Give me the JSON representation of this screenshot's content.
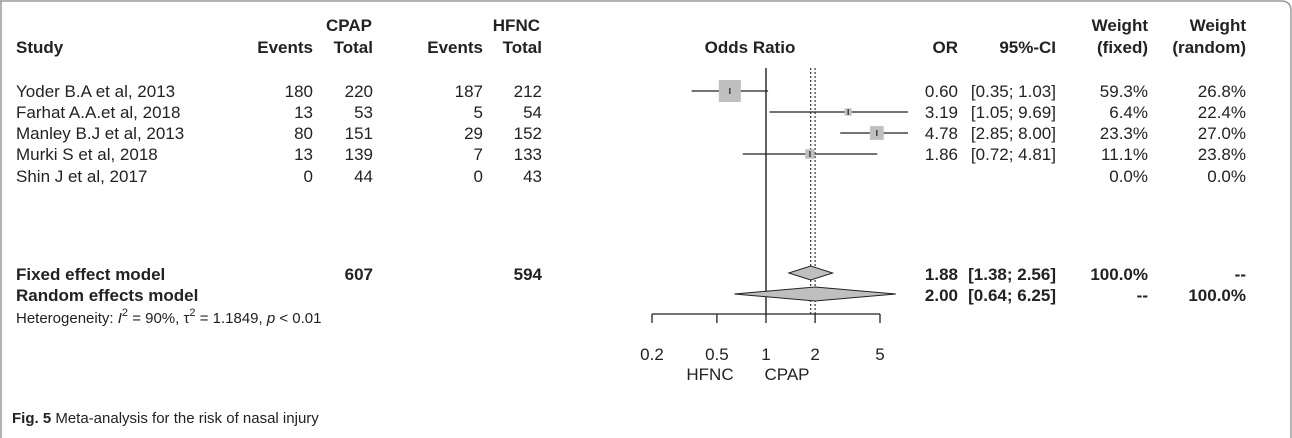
{
  "headers": {
    "study": "Study",
    "cpap_group": "CPAP",
    "hfnc_group": "HFNC",
    "events": "Events",
    "total": "Total",
    "odds_ratio": "Odds Ratio",
    "or": "OR",
    "ci": "95%-CI",
    "weight": "Weight",
    "fixed": "(fixed)",
    "random": "(random)"
  },
  "chart_data": {
    "type": "forest",
    "title": "Odds Ratio",
    "scale": "log",
    "xlim": [
      0.2,
      5
    ],
    "ticks": [
      "0.2",
      "0.5",
      "1",
      "2",
      "5"
    ],
    "x_labels": [
      "HFNC",
      "CPAP"
    ],
    "reference_line": 1,
    "studies": [
      {
        "name": "Yoder B.A et al, 2013",
        "cpap_events": "180",
        "cpap_total": "220",
        "hfnc_events": "187",
        "hfnc_total": "212",
        "or_text": "0.60",
        "ci_text": "[0.35; 1.03]",
        "w_fixed": "59.3%",
        "w_random": "26.8%",
        "or": 0.6,
        "lo": 0.35,
        "hi": 1.03,
        "wf": 59.3
      },
      {
        "name": "Farhat A.A.et al, 2018",
        "cpap_events": "13",
        "cpap_total": "53",
        "hfnc_events": "5",
        "hfnc_total": "54",
        "or_text": "3.19",
        "ci_text": "[1.05; 9.69]",
        "w_fixed": "6.4%",
        "w_random": "22.4%",
        "or": 3.19,
        "lo": 1.05,
        "hi": 9.69,
        "wf": 6.4
      },
      {
        "name": "Manley B.J et al, 2013",
        "cpap_events": "80",
        "cpap_total": "151",
        "hfnc_events": "29",
        "hfnc_total": "152",
        "or_text": "4.78",
        "ci_text": "[2.85; 8.00]",
        "w_fixed": "23.3%",
        "w_random": "27.0%",
        "or": 4.78,
        "lo": 2.85,
        "hi": 8.0,
        "wf": 23.3
      },
      {
        "name": "Murki S et al, 2018",
        "cpap_events": "13",
        "cpap_total": "139",
        "hfnc_events": "7",
        "hfnc_total": "133",
        "or_text": "1.86",
        "ci_text": "[0.72; 4.81]",
        "w_fixed": "11.1%",
        "w_random": "23.8%",
        "or": 1.86,
        "lo": 0.72,
        "hi": 4.81,
        "wf": 11.1
      },
      {
        "name": "Shin J et al, 2017",
        "cpap_events": "0",
        "cpap_total": "44",
        "hfnc_events": "0",
        "hfnc_total": "43",
        "or_text": "",
        "ci_text": "",
        "w_fixed": "0.0%",
        "w_random": "0.0%",
        "or": null,
        "lo": null,
        "hi": null,
        "wf": 0
      }
    ],
    "summaries": [
      {
        "name": "Fixed effect model",
        "cpap_total": "607",
        "hfnc_total": "594",
        "or_text": "1.88",
        "ci_text": "[1.38; 2.56]",
        "w_fixed": "100.0%",
        "w_random": "--",
        "or": 1.88,
        "lo": 1.38,
        "hi": 2.56
      },
      {
        "name": "Random effects model",
        "cpap_total": "",
        "hfnc_total": "",
        "or_text": "2.00",
        "ci_text": "[0.64; 6.25]",
        "w_fixed": "--",
        "w_random": "100.0%",
        "or": 2.0,
        "lo": 0.64,
        "hi": 6.25
      }
    ],
    "heterogeneity": {
      "prefix": "Heterogeneity: ",
      "i2_symbol": "I",
      "i2_value": " = 90%, ",
      "tau_symbol": "τ",
      "tau_value": " = 1.1849, ",
      "p_symbol": "p",
      "p_value": " < 0.01"
    }
  },
  "caption": {
    "label": "Fig. 5",
    "text": " Meta-analysis for the risk of nasal injury"
  },
  "colors": {
    "frame": "#9a9a9a",
    "box": "#bfbfbf",
    "diamond": "#bfbfbf",
    "line": "#222222"
  }
}
